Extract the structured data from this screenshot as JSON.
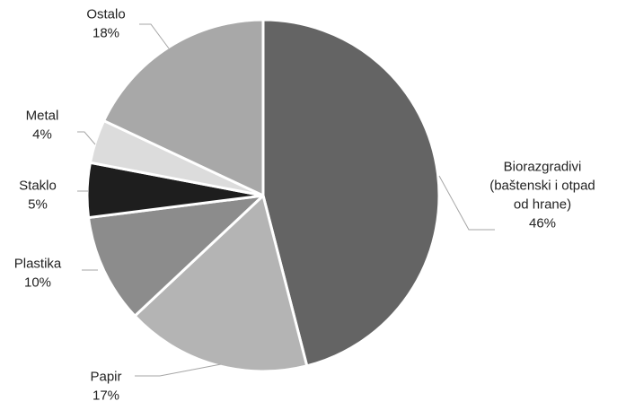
{
  "chart_data": {
    "type": "pie",
    "title": "",
    "slices": [
      {
        "name": "Biorazgradivi (baštenski i otpad od hrane)",
        "label_lines": [
          "Biorazgradivi",
          "(baštenski i otpad",
          "od hrane)"
        ],
        "value": 46,
        "value_label": "46%",
        "color": "#646464"
      },
      {
        "name": "Papir",
        "label_lines": [
          "Papir"
        ],
        "value": 17,
        "value_label": "17%",
        "color": "#b4b4b4"
      },
      {
        "name": "Plastika",
        "label_lines": [
          "Plastika"
        ],
        "value": 10,
        "value_label": "10%",
        "color": "#8c8c8c"
      },
      {
        "name": "Staklo",
        "label_lines": [
          "Staklo"
        ],
        "value": 5,
        "value_label": "5%",
        "color": "#1e1e1e"
      },
      {
        "name": "Metal",
        "label_lines": [
          "Metal"
        ],
        "value": 4,
        "value_label": "4%",
        "color": "#dcdcdc"
      },
      {
        "name": "Ostalo",
        "label_lines": [
          "Ostalo"
        ],
        "value": 18,
        "value_label": "18%",
        "color": "#a8a8a8"
      }
    ],
    "start_angle": "12 o'clock",
    "direction": "clockwise",
    "legend": "none (labels outside slices with leader lines)"
  }
}
